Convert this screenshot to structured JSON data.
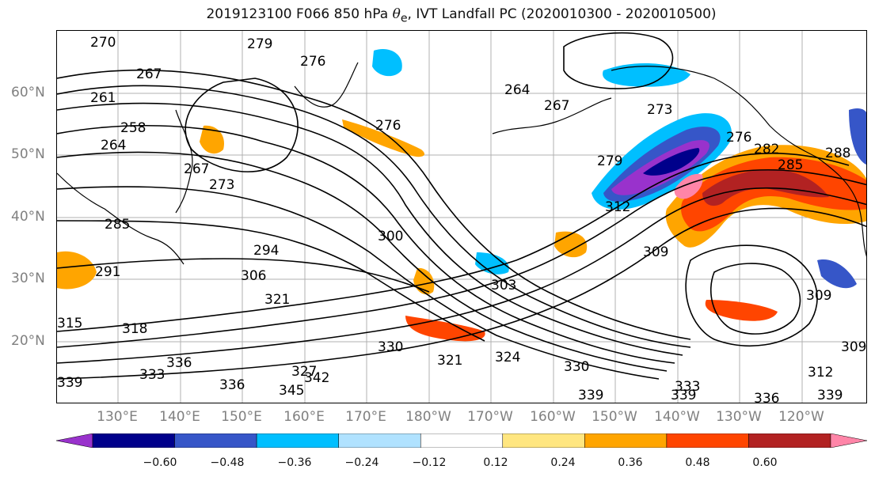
{
  "title": {
    "prefix": "2019123100 F066 850 hPa ",
    "symbol": "θ",
    "subscript": "e",
    "suffix": ", IVT Landfall PC (2020010300 - 2020010500)"
  },
  "lat_labels": [
    "60°N",
    "50°N",
    "40°N",
    "30°N",
    "20°N"
  ],
  "lon_labels": [
    "130°E",
    "140°E",
    "150°E",
    "160°E",
    "170°E",
    "180°W",
    "170°W",
    "160°W",
    "150°W",
    "140°W",
    "130°W",
    "120°W"
  ],
  "colorbar": {
    "colors": [
      "#9932cc",
      "#00008b",
      "#3656c8",
      "#00bfff",
      "#b0e2ff",
      "#ffffff",
      "#ffe680",
      "#ffa500",
      "#ff4500",
      "#b22222",
      "#ff85a8"
    ],
    "ticks": [
      "−0.60",
      "−0.48",
      "−0.36",
      "−0.24",
      "−0.12",
      "0.12",
      "0.24",
      "0.36",
      "0.48",
      "0.60"
    ]
  },
  "contour_labels": [
    "270",
    "279",
    "276",
    "267",
    "261",
    "258",
    "264",
    "267",
    "273",
    "276",
    "264",
    "267",
    "273",
    "279",
    "285",
    "294",
    "306",
    "303",
    "300",
    "309",
    "321",
    "318",
    "315",
    "291",
    "330",
    "321",
    "324",
    "327",
    "336",
    "333",
    "339",
    "342",
    "345",
    "339",
    "336",
    "339",
    "330",
    "333",
    "336",
    "312",
    "309",
    "309",
    "312",
    "339",
    "276",
    "282",
    "285",
    "288"
  ]
}
